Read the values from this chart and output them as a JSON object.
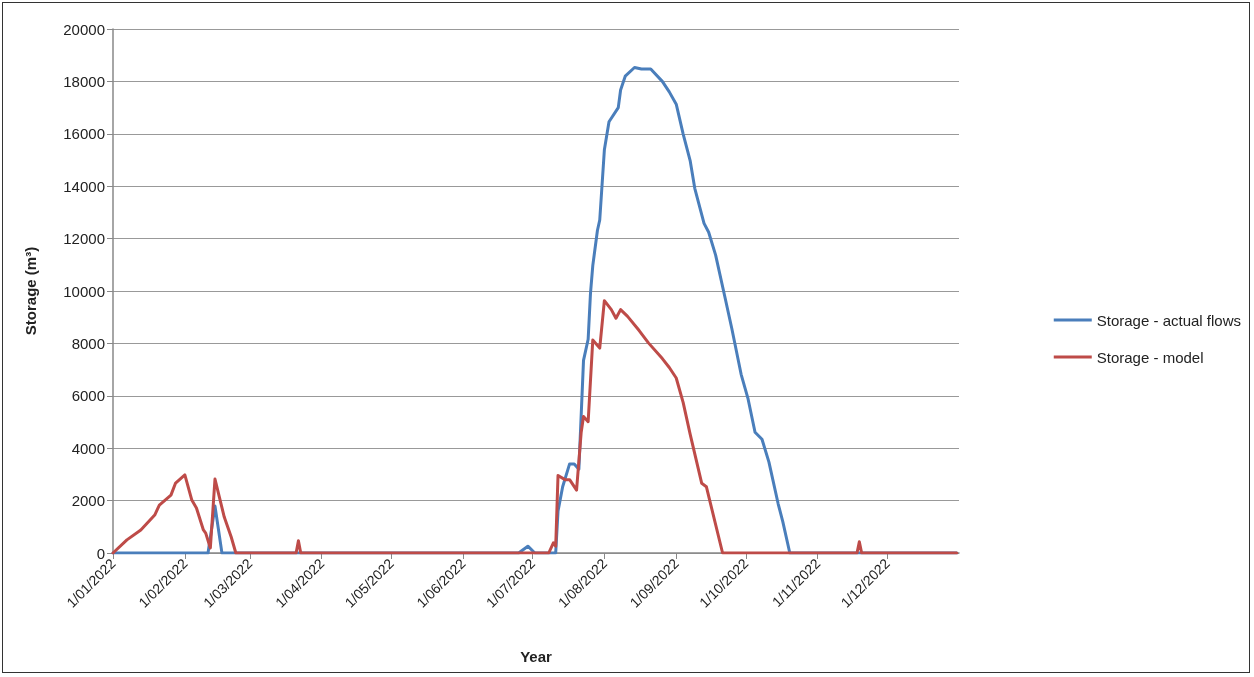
{
  "chart_data": {
    "type": "line",
    "xlabel": "Year",
    "ylabel": "Storage (m³)",
    "xlim": [
      "2022-01-01",
      "2023-01-01"
    ],
    "xticks": [
      {
        "value": "2022-01-01",
        "label": "1/01/2022"
      },
      {
        "value": "2022-02-01",
        "label": "1/02/2022"
      },
      {
        "value": "2022-03-01",
        "label": "1/03/2022"
      },
      {
        "value": "2022-04-01",
        "label": "1/04/2022"
      },
      {
        "value": "2022-05-01",
        "label": "1/05/2022"
      },
      {
        "value": "2022-06-01",
        "label": "1/06/2022"
      },
      {
        "value": "2022-07-01",
        "label": "1/07/2022"
      },
      {
        "value": "2022-08-01",
        "label": "1/08/2022"
      },
      {
        "value": "2022-09-01",
        "label": "1/09/2022"
      },
      {
        "value": "2022-10-01",
        "label": "1/10/2022"
      },
      {
        "value": "2022-11-01",
        "label": "1/11/2022"
      },
      {
        "value": "2022-12-01",
        "label": "1/12/2022"
      }
    ],
    "ylim": [
      0,
      20000
    ],
    "yticks": [
      0,
      2000,
      4000,
      6000,
      8000,
      10000,
      12000,
      14000,
      16000,
      18000,
      20000
    ],
    "grid": "y",
    "legend": "right",
    "marker": "none",
    "line_style": "solid",
    "series": [
      {
        "name": "Storage - actual flows",
        "color": "#4a7ebb",
        "x": [
          "2022-01-01",
          "2022-02-11",
          "2022-02-14",
          "2022-02-17",
          "2022-06-25",
          "2022-06-29",
          "2022-07-02",
          "2022-07-11",
          "2022-07-12",
          "2022-07-14",
          "2022-07-17",
          "2022-07-19",
          "2022-07-21",
          "2022-07-23",
          "2022-07-25",
          "2022-07-26",
          "2022-07-27",
          "2022-07-29",
          "2022-07-30",
          "2022-08-01",
          "2022-08-03",
          "2022-08-07",
          "2022-08-08",
          "2022-08-10",
          "2022-08-14",
          "2022-08-17",
          "2022-08-21",
          "2022-08-26",
          "2022-08-29",
          "2022-09-01",
          "2022-09-04",
          "2022-09-07",
          "2022-09-09",
          "2022-09-13",
          "2022-09-15",
          "2022-09-18",
          "2022-09-22",
          "2022-09-25",
          "2022-09-29",
          "2022-10-02",
          "2022-10-05",
          "2022-10-08",
          "2022-10-11",
          "2022-10-15",
          "2022-10-17",
          "2022-10-20",
          "2022-12-31"
        ],
        "values": [
          0,
          0,
          1790,
          0,
          0,
          260,
          0,
          0,
          1600,
          2530,
          3400,
          3400,
          3200,
          7350,
          8160,
          9900,
          10970,
          12310,
          12710,
          15390,
          16460,
          17000,
          17670,
          18200,
          18530,
          18470,
          18470,
          18000,
          17600,
          17130,
          15990,
          14980,
          13920,
          12580,
          12240,
          11370,
          9770,
          8560,
          6820,
          5880,
          4610,
          4340,
          3470,
          1870,
          1190,
          0,
          0
        ]
      },
      {
        "name": "Storage - model",
        "color": "#be4b48",
        "x": [
          "2022-01-01",
          "2022-01-07",
          "2022-01-13",
          "2022-01-19",
          "2022-01-21",
          "2022-01-26",
          "2022-01-28",
          "2022-02-01",
          "2022-02-04",
          "2022-02-06",
          "2022-02-09",
          "2022-02-10",
          "2022-02-12",
          "2022-02-14",
          "2022-02-18",
          "2022-02-21",
          "2022-02-23",
          "2022-03-21",
          "2022-03-22",
          "2022-03-23",
          "2022-07-08",
          "2022-07-10",
          "2022-07-11",
          "2022-07-12",
          "2022-07-15",
          "2022-07-17",
          "2022-07-20",
          "2022-07-22",
          "2022-07-23",
          "2022-07-25",
          "2022-07-27",
          "2022-07-30",
          "2022-08-01",
          "2022-08-04",
          "2022-08-06",
          "2022-08-08",
          "2022-08-11",
          "2022-08-16",
          "2022-08-20",
          "2022-08-26",
          "2022-08-29",
          "2022-09-01",
          "2022-09-04",
          "2022-09-07",
          "2022-09-12",
          "2022-09-14",
          "2022-09-21",
          "2022-11-18",
          "2022-11-19",
          "2022-11-20",
          "2022-12-31"
        ],
        "values": [
          0,
          500,
          880,
          1450,
          1830,
          2210,
          2670,
          2980,
          2020,
          1720,
          880,
          760,
          190,
          2820,
          1370,
          610,
          0,
          0,
          470,
          0,
          0,
          390,
          260,
          2960,
          2800,
          2800,
          2400,
          4610,
          5210,
          5010,
          8130,
          7820,
          9630,
          9290,
          8960,
          9290,
          9030,
          8490,
          8020,
          7420,
          7080,
          6680,
          5740,
          4540,
          2660,
          2530,
          0,
          0,
          430,
          0,
          0
        ]
      }
    ]
  }
}
